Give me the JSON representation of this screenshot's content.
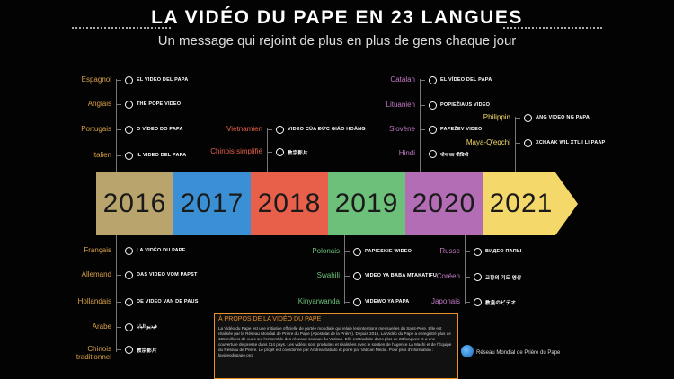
{
  "header": {
    "title": "LA VIDÉO DU PAPE EN 23 LANGUES",
    "subtitle": "Un message qui rejoint de plus en plus de gens chaque jour"
  },
  "timeline": {
    "years": [
      {
        "label": "2016",
        "color": "#b9a46d"
      },
      {
        "label": "2017",
        "color": "#3b8fd4"
      },
      {
        "label": "2018",
        "color": "#e8604a"
      },
      {
        "label": "2019",
        "color": "#6cc07a"
      },
      {
        "label": "2020",
        "color": "#b26db4"
      },
      {
        "label": "2021",
        "color": "#f4d86a"
      }
    ]
  },
  "groups": [
    {
      "color": "#d9a24a",
      "rows": [
        {
          "language": "Espagnol",
          "logo": "EL VIDEO DEL PAPA"
        },
        {
          "language": "Anglais",
          "logo": "THE POPE VIDEO"
        },
        {
          "language": "Portugais",
          "logo": "O VÍDEO DO PAPA"
        },
        {
          "language": "Italien",
          "logo": "IL VIDEO DEL PAPA"
        }
      ]
    },
    {
      "color": "#d9a24a",
      "rows": [
        {
          "language": "Français",
          "logo": "LA VIDÉO DU PAPE"
        },
        {
          "language": "Allemand",
          "logo": "DAS VIDEO VOM PAPST"
        },
        {
          "language": "Hollandais",
          "logo": "DE VIDEO VAN DE PAUS"
        },
        {
          "language": "Arabe",
          "logo": "فيديو البابا"
        },
        {
          "language": "Chinois traditionnel",
          "logo": "教宗影片"
        }
      ]
    },
    {
      "color": "#e8604a",
      "rows": [
        {
          "language": "Vietnamien",
          "logo": "VIDEO CỦA ĐỨC GIÁO HOÀNG"
        },
        {
          "language": "Chinois simplifié",
          "logo": "教宗影片"
        }
      ]
    },
    {
      "color": "#6cc07a",
      "rows": [
        {
          "language": "Polonais",
          "logo": "PAPIESKIE WIDEO"
        },
        {
          "language": "Swahili",
          "logo": "VIDEO YA BABA MTAKATIFU"
        },
        {
          "language": "Kinyarwanda",
          "logo": "VIDEWO YA PAPA"
        }
      ]
    },
    {
      "color": "#c27ac4",
      "rows": [
        {
          "language": "Catalan",
          "logo": "EL VÍDEO DEL PAPA"
        },
        {
          "language": "Lituanien",
          "logo": "POPIEŽIAUS VIDEO"
        },
        {
          "language": "Slovène",
          "logo": "PAPEŽEV VIDEO"
        },
        {
          "language": "Hindi",
          "logo": "पोप का वीडियो"
        }
      ]
    },
    {
      "color": "#c27ac4",
      "rows": [
        {
          "language": "Russe",
          "logo": "ВИДЕО ПАПЫ"
        },
        {
          "language": "Coréen",
          "logo": "교황의 기도 영상"
        },
        {
          "language": "Japonais",
          "logo": "教皇のビデオ"
        }
      ]
    },
    {
      "color": "#f4d86a",
      "rows": [
        {
          "language": "Philippin",
          "logo": "ANG VIDEO NG PAPA"
        },
        {
          "language": "Maya-Q'eqchi",
          "logo": "XCHAAK WIL XTL'I LI PAAP"
        }
      ]
    }
  ],
  "about": {
    "title": "À PROPOS DE LA VIDÉO DU PAPE",
    "body": "La Vidéo du Pape est une initiative officielle de portée mondiale qui relaie les intentions mensuelles du Saint-Père. Elle est réalisée par le Réseau Mondial de Prière du Pape (Apostolat de la Prière). Depuis 2016, La Vidéo du Pape a enregistré plus de 155 millions de vues sur l'ensemble des réseaux sociaux du Vatican. Elle est traduite dans plus de 23 langues et a une couverture de presse dans 114 pays. Les vidéos sont produites et réalisées avec le soutien de l'Agence La Machi et de l'Équipe du Réseau de Prière. Le projet est coordonné par Andrea Sabato et porté par Vatican Media. Pour plus d'information : lavideodupape.org"
  },
  "footer": {
    "organization": "Réseau Mondial de Prière du Pape"
  }
}
